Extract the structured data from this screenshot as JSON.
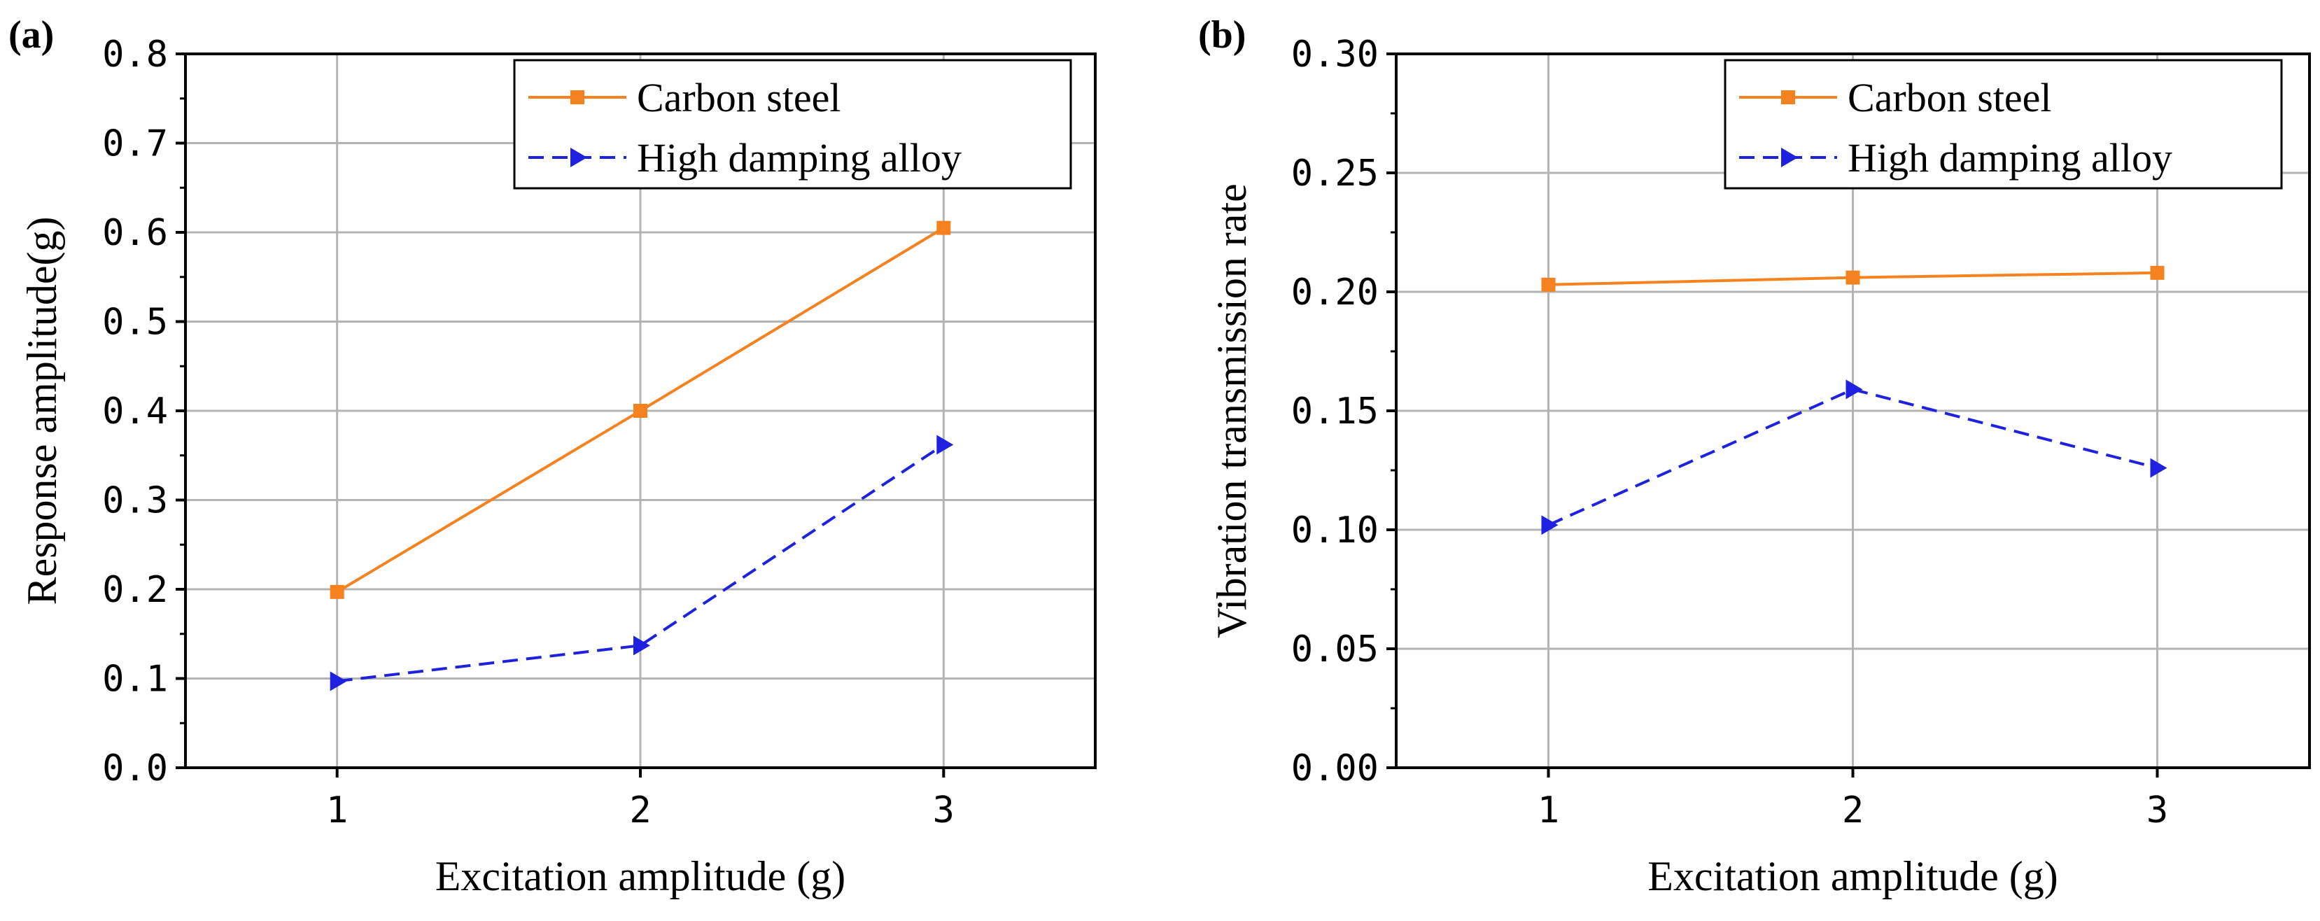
{
  "chart_data": [
    {
      "panel": "(a)",
      "type": "line",
      "title": "",
      "xlabel": "Excitation amplitude (g)",
      "ylabel": "Response amplitude(g)",
      "xlim": [
        0.5,
        3.5
      ],
      "ylim": [
        0.0,
        0.8
      ],
      "xticks": [
        1,
        2,
        3
      ],
      "xtick_labels": [
        "1",
        "2",
        "3"
      ],
      "yticks": [
        0.0,
        0.1,
        0.2,
        0.3,
        0.4,
        0.5,
        0.6,
        0.7,
        0.8
      ],
      "ytick_labels": [
        "0.0",
        "0.1",
        "0.2",
        "0.3",
        "0.4",
        "0.5",
        "0.6",
        "0.7",
        "0.8"
      ],
      "grid": true,
      "legend_position": "top-right",
      "x": [
        1,
        2,
        3
      ],
      "series": [
        {
          "name": "Carbon steel",
          "values": [
            0.197,
            0.4,
            0.605
          ],
          "color": "#F5821F",
          "marker": "square",
          "linestyle": "solid"
        },
        {
          "name": "High damping alloy",
          "values": [
            0.097,
            0.137,
            0.362
          ],
          "color": "#1E22E0",
          "marker": "triangle-right",
          "linestyle": "dashed"
        }
      ]
    },
    {
      "panel": "(b)",
      "type": "line",
      "title": "",
      "xlabel": "Excitation amplitude (g)",
      "ylabel": "Vibration transmission rate",
      "xlim": [
        0.5,
        3.5
      ],
      "ylim": [
        0.0,
        0.3
      ],
      "xticks": [
        1,
        2,
        3
      ],
      "xtick_labels": [
        "1",
        "2",
        "3"
      ],
      "yticks": [
        0.0,
        0.05,
        0.1,
        0.15,
        0.2,
        0.25,
        0.3
      ],
      "ytick_labels": [
        "0.00",
        "0.05",
        "0.10",
        "0.15",
        "0.20",
        "0.25",
        "0.30"
      ],
      "grid": true,
      "legend_position": "top-right",
      "x": [
        1,
        2,
        3
      ],
      "series": [
        {
          "name": "Carbon steel",
          "values": [
            0.203,
            0.206,
            0.208
          ],
          "color": "#F5821F",
          "marker": "square",
          "linestyle": "solid"
        },
        {
          "name": "High damping alloy",
          "values": [
            0.102,
            0.159,
            0.126
          ],
          "color": "#1E22E0",
          "marker": "triangle-right",
          "linestyle": "dashed"
        }
      ]
    }
  ]
}
